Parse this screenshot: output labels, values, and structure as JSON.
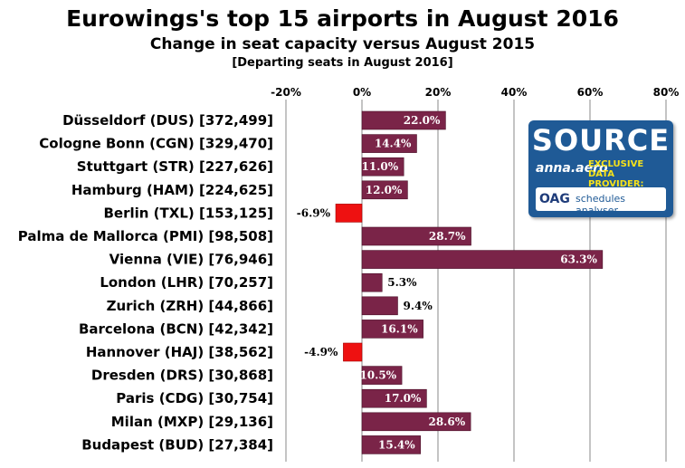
{
  "chart_data": {
    "type": "bar",
    "orientation": "horizontal",
    "title": "Eurowings's top 15 airports in August 2016",
    "subtitle": "Change in seat capacity versus August 2015",
    "note": "[Departing seats in August 2016]",
    "categories": [
      "Düsseldorf (DUS) [372,499]",
      "Cologne Bonn (CGN) [329,470]",
      "Stuttgart (STR) [227,626]",
      "Hamburg (HAM) [224,625]",
      "Berlin (TXL) [153,125]",
      "Palma de Mallorca (PMI) [98,508]",
      "Vienna (VIE) [76,946]",
      "London (LHR) [70,257]",
      "Zurich (ZRH) [44,866]",
      "Barcelona (BCN) [42,342]",
      "Hannover (HAJ) [38,562]",
      "Dresden (DRS) [30,868]",
      "Paris (CDG) [30,754]",
      "Milan (MXP) [29,136]",
      "Budapest (BUD) [27,384]"
    ],
    "values": [
      22.0,
      14.4,
      11.0,
      12.0,
      -6.9,
      28.7,
      63.3,
      5.3,
      9.4,
      16.1,
      -4.9,
      10.5,
      17.0,
      28.6,
      15.4
    ],
    "value_labels": [
      "22.0%",
      "14.4%",
      "11.0%",
      "12.0%",
      "-6.9%",
      "28.7%",
      "63.3%",
      "5.3%",
      "9.4%",
      "16.1%",
      "-4.9%",
      "10.5%",
      "17.0%",
      "28.6%",
      "15.4%"
    ],
    "xlim": [
      -20,
      80
    ],
    "ticks": [
      -20,
      0,
      20,
      40,
      60,
      80
    ],
    "tick_labels": [
      "-20%",
      "0%",
      "20%",
      "40%",
      "60%",
      "80%"
    ],
    "grid": true,
    "axis_position": "top",
    "colors": {
      "positive": "#7a2448",
      "negative": "#ee1111",
      "grid": "#888888"
    }
  },
  "badge": {
    "source": "SOURCE",
    "logo": "anna.aero",
    "exclusive_line1": "EXCLUSIVE",
    "exclusive_line2": "DATA PROVIDER:",
    "oag": "OAG",
    "schedules": "schedules analyser"
  }
}
